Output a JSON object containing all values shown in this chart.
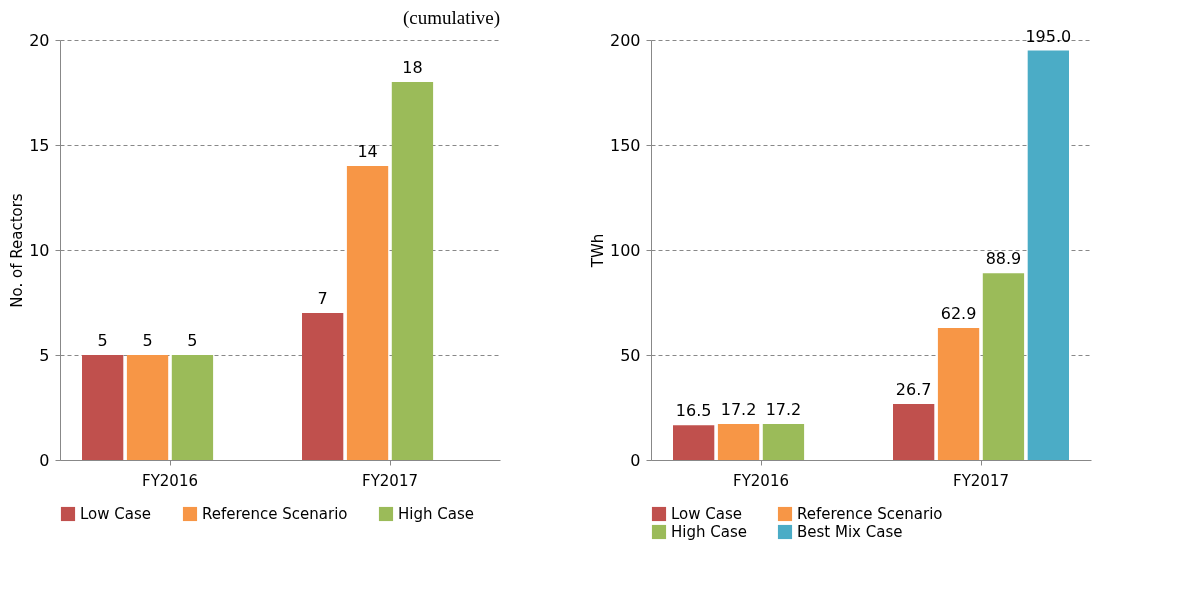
{
  "chart_data": [
    {
      "type": "bar",
      "categories": [
        "FY2016",
        "FY2017"
      ],
      "ylabel": "No. of Reactors",
      "ylim": [
        0,
        20
      ],
      "yticks": [
        0,
        5,
        10,
        15,
        20
      ],
      "grid": "y",
      "legend": "bottom",
      "data_labels": true,
      "annotations": [
        "(cumulative)"
      ],
      "series": [
        {
          "name": "Low Case",
          "color": "#c0504d",
          "values": [
            5,
            7
          ]
        },
        {
          "name": "Reference Scenario",
          "color": "#f79646",
          "values": [
            5,
            14
          ]
        },
        {
          "name": "High Case",
          "color": "#9bbb59",
          "values": [
            5,
            18
          ]
        }
      ]
    },
    {
      "type": "bar",
      "categories": [
        "FY2016",
        "FY2017"
      ],
      "ylabel": "TWh",
      "ylim": [
        0,
        200
      ],
      "yticks": [
        0,
        50,
        100,
        150,
        200
      ],
      "grid": "y",
      "legend": "bottom",
      "series": [
        {
          "name": "Low Case",
          "color": "#c0504d",
          "values": [
            16.5,
            26.7
          ],
          "value_labels": [
            "16.5",
            "26.7"
          ]
        },
        {
          "name": "Reference Scenario",
          "color": "#f79646",
          "values": [
            17.2,
            62.9
          ],
          "value_labels": [
            "17.2",
            "62.9"
          ]
        },
        {
          "name": "High Case",
          "color": "#9bbb59",
          "values": [
            17.2,
            88.9
          ],
          "value_labels": [
            "17.2",
            "88.9"
          ]
        },
        {
          "name": "Best Mix Case",
          "color": "#4bacc6",
          "values": [
            null,
            195
          ],
          "value_labels": [
            null,
            "195.0"
          ]
        }
      ]
    }
  ]
}
